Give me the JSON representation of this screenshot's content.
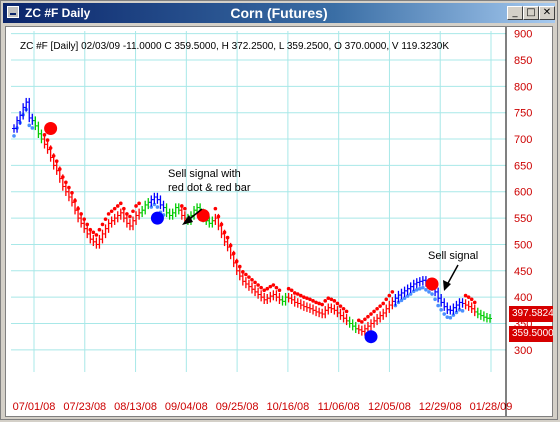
{
  "window": {
    "tab_label": "ZC #F Daily",
    "title": "Corn (Futures)",
    "min_symbol": "_",
    "max_symbol": "□",
    "close_symbol": "✕"
  },
  "info_line": "ZC #F [Daily] 02/03/09  -11.0000 C 359.5000, H 372.2500, L 359.2500, O 370.0000, V 119.3230K",
  "annotations": {
    "sell1": [
      "Sell signal with",
      "red dot & red bar"
    ],
    "sell2": "Sell signal"
  },
  "price_tags": {
    "upper": "397.5824",
    "lower": "359.5000"
  },
  "colors": {
    "up": "#0000ff",
    "down": "#ff0000",
    "neutral": "#00cc00",
    "grid": "#a8e8e8",
    "axis_text": "#cc0000",
    "signal_sell": "#ff0000",
    "signal_buy": "#0000ff",
    "stop_blue": "#4a90ff",
    "price_tag": "#d60000"
  },
  "chart_data": {
    "type": "bar",
    "title": "Corn (Futures)",
    "xlabel": "",
    "ylabel": "",
    "ylim": [
      258,
      905
    ],
    "y_ticks": [
      300,
      350,
      400,
      450,
      500,
      550,
      600,
      650,
      700,
      750,
      800,
      850,
      900
    ],
    "x_ticks": [
      "07/01/08",
      "07/23/08",
      "08/13/08",
      "09/04/08",
      "09/25/08",
      "10/16/08",
      "11/06/08",
      "12/05/08",
      "12/29/08",
      "01/28/09"
    ],
    "grid": true,
    "series": [
      {
        "color_points": [
          {
            "i": 0,
            "c": "up"
          },
          {
            "i": 7,
            "c": "neutral"
          },
          {
            "i": 10,
            "c": "down"
          },
          {
            "i": 42,
            "c": "neutral"
          },
          {
            "i": 45,
            "c": "up"
          },
          {
            "i": 50,
            "c": "neutral"
          },
          {
            "i": 55,
            "c": "down"
          },
          {
            "i": 57,
            "c": "neutral"
          },
          {
            "i": 66,
            "c": "down"
          },
          {
            "i": 88,
            "c": "neutral"
          },
          {
            "i": 90,
            "c": "down"
          },
          {
            "i": 110,
            "c": "neutral"
          },
          {
            "i": 113,
            "c": "down"
          },
          {
            "i": 125,
            "c": "up"
          },
          {
            "i": 148,
            "c": "down"
          },
          {
            "i": 152,
            "c": "neutral"
          },
          {
            "i": 158,
            "c": "down"
          }
        ],
        "closes": [
          720,
          735,
          745,
          760,
          770,
          740,
          735,
          725,
          710,
          700,
          690,
          680,
          665,
          650,
          640,
          625,
          610,
          600,
          590,
          580,
          565,
          550,
          540,
          530,
          520,
          510,
          505,
          500,
          510,
          520,
          530,
          540,
          545,
          550,
          555,
          560,
          550,
          540,
          535,
          545,
          555,
          560,
          565,
          575,
          580,
          585,
          590,
          585,
          575,
          570,
          560,
          555,
          560,
          570,
          565,
          555,
          550,
          545,
          555,
          565,
          570,
          560,
          550,
          545,
          540,
          545,
          550,
          535,
          520,
          505,
          495,
          480,
          465,
          450,
          440,
          430,
          425,
          420,
          415,
          410,
          405,
          400,
          395,
          398,
          402,
          405,
          400,
          395,
          392,
          400,
          398,
          395,
          390,
          388,
          385,
          382,
          380,
          378,
          375,
          372,
          370,
          368,
          375,
          380,
          378,
          375,
          370,
          365,
          360,
          355,
          350,
          345,
          340,
          338,
          335,
          340,
          345,
          350,
          355,
          360,
          365,
          370,
          378,
          385,
          392,
          398,
          404,
          408,
          412,
          416,
          420,
          425,
          428,
          430,
          432,
          428,
          424,
          420,
          410,
          398,
          390,
          382,
          376,
          375,
          380,
          385,
          390,
          388,
          385,
          382,
          378,
          372,
          368,
          365,
          362,
          360,
          359.5
        ],
        "sell_signals": [
          {
            "i": 12,
            "y": 720
          },
          {
            "i": 62,
            "y": 555
          },
          {
            "i": 137,
            "y": 425
          }
        ],
        "buy_signals": [
          {
            "i": 47,
            "y": 550
          },
          {
            "i": 117,
            "y": 325
          }
        ]
      }
    ]
  }
}
